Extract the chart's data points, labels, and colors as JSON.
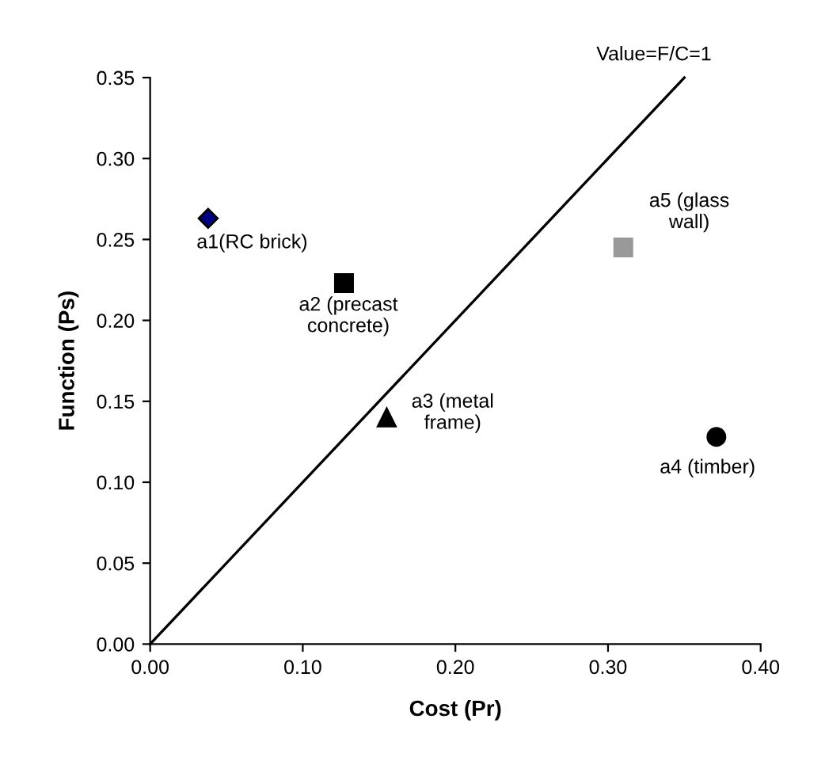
{
  "chart_data": {
    "type": "scatter",
    "xlabel": "Cost (Pr)",
    "ylabel": "Function (Ps)",
    "xlim": [
      0,
      0.4
    ],
    "xticks": [
      {
        "value": 0,
        "label": "0.00"
      },
      {
        "value": 0.1,
        "label": "0.10"
      },
      {
        "value": 0.2,
        "label": "0.20"
      },
      {
        "value": 0.3,
        "label": "0.30"
      },
      {
        "value": 0.4,
        "label": "0.40"
      }
    ],
    "ylim": [
      0,
      0.35
    ],
    "yticks": [
      {
        "value": 0,
        "label": "0.00"
      },
      {
        "value": 0.05,
        "label": "0.05"
      },
      {
        "value": 0.1,
        "label": "0.10"
      },
      {
        "value": 0.15,
        "label": "0.15"
      },
      {
        "value": 0.2,
        "label": "0.20"
      },
      {
        "value": 0.25,
        "label": "0.25"
      },
      {
        "value": 0.3,
        "label": "0.30"
      },
      {
        "value": 0.35,
        "label": "0.35"
      }
    ],
    "grid": false,
    "legend": false,
    "series": [
      {
        "name": "Value=F/C=1",
        "type": "line",
        "color": "#000000",
        "line_style": "solid",
        "marker": "none",
        "x": [
          0,
          0.35
        ],
        "values": [
          0,
          0.35
        ]
      },
      {
        "name": "a1(RC brick)",
        "color": "#000080",
        "marker": "diamond",
        "x": [
          0.038
        ],
        "values": [
          0.263
        ]
      },
      {
        "name": "a2 (precast\nconcrete)",
        "color": "#000000",
        "marker": "square",
        "x": [
          0.127
        ],
        "values": [
          0.223
        ]
      },
      {
        "name": "a3 (metal\nframe)",
        "color": "#000000",
        "marker": "triangle",
        "x": [
          0.155
        ],
        "values": [
          0.14
        ]
      },
      {
        "name": "a4 (timber)",
        "color": "#000000",
        "marker": "circle",
        "x": [
          0.371
        ],
        "values": [
          0.128
        ]
      },
      {
        "name": "a5 (glass\nwall)",
        "color": "#999999",
        "marker": "square",
        "x": [
          0.31
        ],
        "values": [
          0.245
        ]
      }
    ]
  }
}
